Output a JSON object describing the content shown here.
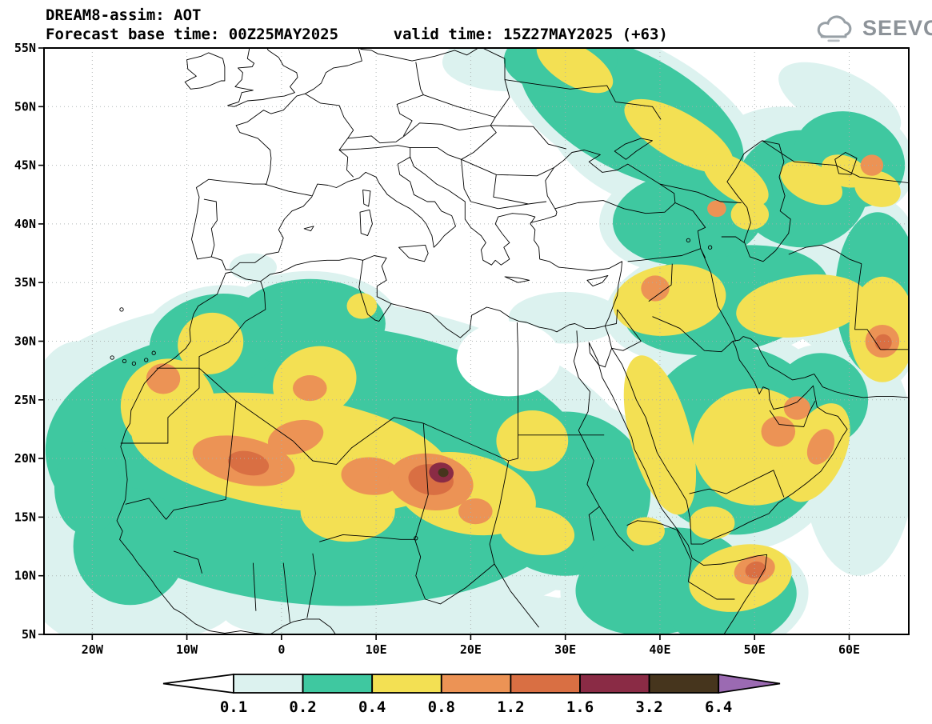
{
  "header": {
    "title": "DREAM8-assim: AOT",
    "subtitle": "Forecast base time: 00Z25MAY2025      valid time: 15Z27MAY2025 (+63)"
  },
  "logo": {
    "text": "SEEVCCC",
    "icon": "cloud-icon",
    "color": "#8d9399"
  },
  "chart_data": {
    "type": "filled_contour_map",
    "title": "DREAM8-assim: AOT",
    "variable": "AOT (aerosol optical thickness)",
    "forecast_base_time": "00Z25MAY2025",
    "valid_time": "15Z27MAY2025",
    "forecast_hour": "+63",
    "map_extent": {
      "lon_min": -25.1,
      "lon_max": 66.3,
      "lat_min": 5,
      "lat_max": 55
    },
    "x_axis": {
      "tick_labels": [
        "20W",
        "10W",
        "0",
        "10E",
        "20E",
        "30E",
        "40E",
        "50E",
        "60E"
      ],
      "tick_lons": [
        -20,
        -10,
        0,
        10,
        20,
        30,
        40,
        50,
        60
      ]
    },
    "y_axis": {
      "tick_labels": [
        "55N",
        "50N",
        "45N",
        "40N",
        "35N",
        "30N",
        "25N",
        "20N",
        "15N",
        "10N",
        "5N"
      ],
      "tick_lats": [
        55,
        50,
        45,
        40,
        35,
        30,
        25,
        20,
        15,
        10,
        5
      ]
    },
    "grid": "dotted",
    "contour_levels": [
      0.1,
      0.2,
      0.4,
      0.8,
      1.2,
      1.6,
      3.2,
      6.4
    ],
    "palette": [
      "#ffffff",
      "#dcf2ef",
      "#3fc8a0",
      "#f3e053",
      "#ec9355",
      "#d96f43",
      "#8a2b45",
      "#46351d",
      "#9b6ab2"
    ],
    "palette_meaning": [
      "<0.1",
      "0.1-0.2",
      "0.2-0.4",
      "0.4-0.8",
      "0.8-1.2",
      "1.2-1.6",
      "1.6-3.2",
      "3.2-6.4",
      ">6.4"
    ],
    "aot_features": [
      {
        "name": "aot-0.1-0.2",
        "color": 1,
        "ellipses": [
          [
            -19,
            12,
            9,
            8,
            0
          ],
          [
            -21.5,
            23,
            5.5,
            7,
            0
          ],
          [
            -14,
            7.5,
            9,
            3,
            0
          ],
          [
            14,
            6.5,
            20,
            2.5,
            0
          ],
          [
            40,
            6.5,
            14,
            2.5,
            0
          ],
          [
            30,
            32,
            6,
            2.2,
            0
          ],
          [
            24,
            53.8,
            7,
            2.5,
            0
          ],
          [
            38,
            48,
            11,
            6,
            28
          ],
          [
            53,
            44,
            9,
            6,
            0
          ],
          [
            61,
            20,
            6,
            10,
            0
          ],
          [
            59,
            34,
            6,
            5,
            0
          ],
          [
            26,
            24,
            6,
            4,
            0
          ],
          [
            44.5,
            28.5,
            3.5,
            2.5,
            0
          ],
          [
            -3,
            36.3,
            2.5,
            1.2,
            0
          ],
          [
            59,
            50.5,
            7,
            2.5,
            25
          ]
        ]
      },
      {
        "name": "aot-0.2-0.4",
        "color": 2,
        "rim_color": 1,
        "rim_scale": 1.18,
        "ellipses": [
          [
            4,
            19.5,
            29,
            12,
            4
          ],
          [
            -7,
            30,
            7,
            4,
            -10
          ],
          [
            3,
            31.5,
            8,
            3.8,
            0
          ],
          [
            30,
            17,
            9,
            7,
            0
          ],
          [
            40,
            9.5,
            9,
            4.5,
            -10
          ],
          [
            48,
            21.5,
            10,
            8,
            0
          ],
          [
            47,
            33.5,
            11,
            4.5,
            -10
          ],
          [
            43,
            40.5,
            8,
            4,
            -5
          ],
          [
            37,
            49.5,
            13,
            5,
            28
          ],
          [
            29.5,
            54,
            6,
            2.8,
            0
          ],
          [
            55,
            43,
            7,
            5,
            0
          ],
          [
            63,
            34,
            4.5,
            7,
            0
          ],
          [
            -16,
            12.5,
            6,
            5,
            0
          ],
          [
            -20.5,
            17.5,
            3.5,
            4,
            0
          ],
          [
            47.5,
            8,
            7,
            4,
            -10
          ],
          [
            57,
            25,
            5,
            4,
            0
          ],
          [
            60,
            45.5,
            6,
            4,
            20
          ]
        ]
      },
      {
        "name": "aot-below-0.1",
        "color": 0,
        "ellipses": [
          [
            24,
            28.5,
            5.5,
            3.2,
            0
          ],
          [
            -9.5,
            23.5,
            2.5,
            2,
            0
          ]
        ]
      },
      {
        "name": "aot-0.4-0.8",
        "color": 3,
        "ellipses": [
          [
            1,
            20.5,
            17,
            4.8,
            8
          ],
          [
            -12,
            24.5,
            5,
            4,
            -25
          ],
          [
            -7.5,
            29.8,
            3.5,
            2.6,
            -20
          ],
          [
            3.5,
            26.5,
            4.5,
            3,
            -20
          ],
          [
            19.5,
            17,
            7.5,
            3.4,
            12
          ],
          [
            7,
            15.5,
            5,
            2.6,
            0
          ],
          [
            27,
            13.8,
            4,
            2,
            10
          ],
          [
            26.5,
            21.5,
            3.8,
            2.6,
            0
          ],
          [
            40,
            22,
            3.2,
            7,
            -15
          ],
          [
            50,
            21,
            6.5,
            5,
            0
          ],
          [
            56.5,
            20.5,
            3,
            4.5,
            25
          ],
          [
            48.5,
            9.8,
            5.5,
            2.8,
            -12
          ],
          [
            41,
            33.5,
            6,
            3,
            -8
          ],
          [
            55,
            33,
            7,
            2.6,
            -8
          ],
          [
            63.5,
            31,
            3.5,
            4.5,
            0
          ],
          [
            42,
            47.5,
            6.5,
            2,
            30
          ],
          [
            31,
            53.5,
            4.5,
            1.7,
            30
          ],
          [
            48,
            43.8,
            4,
            1.6,
            35
          ],
          [
            56,
            43.5,
            3.5,
            1.6,
            25
          ],
          [
            38.5,
            13.8,
            2,
            1.2,
            0
          ],
          [
            45.5,
            14.5,
            2.4,
            1.4,
            0
          ],
          [
            49.5,
            40.8,
            2,
            1.3,
            0
          ],
          [
            59.5,
            44.5,
            2.5,
            1.3,
            20
          ],
          [
            63,
            43,
            2.5,
            1.5,
            20
          ],
          [
            8.5,
            33,
            1.6,
            1.1,
            0
          ]
        ]
      },
      {
        "name": "aot-0.8-1.2",
        "color": 4,
        "ellipses": [
          [
            -4,
            19.8,
            5.5,
            2,
            12
          ],
          [
            1.5,
            21.8,
            3,
            1.4,
            -15
          ],
          [
            9.5,
            18.5,
            3.2,
            1.6,
            5
          ],
          [
            15.8,
            18,
            4.5,
            2.4,
            8
          ],
          [
            -12.5,
            26.8,
            1.8,
            1.3,
            0
          ],
          [
            3,
            26,
            1.8,
            1.1,
            0
          ],
          [
            20.5,
            15.5,
            1.8,
            1.1,
            0
          ],
          [
            39.5,
            34.5,
            1.5,
            1.1,
            0
          ],
          [
            52.5,
            22.3,
            1.8,
            1.3,
            0
          ],
          [
            54.5,
            24.3,
            1.4,
            1,
            0
          ],
          [
            57,
            21,
            1.3,
            1.6,
            25
          ],
          [
            50,
            10.5,
            2.2,
            1.2,
            -15
          ],
          [
            63.5,
            30,
            1.8,
            1.4,
            0
          ],
          [
            46,
            41.3,
            1,
            0.7,
            0
          ],
          [
            62.4,
            45,
            1.2,
            0.9,
            0
          ]
        ]
      },
      {
        "name": "aot-1.2-1.6",
        "color": 5,
        "ellipses": [
          [
            15.8,
            18.2,
            2.4,
            1.3,
            8
          ],
          [
            -3.5,
            19.6,
            2.2,
            1,
            12
          ],
          [
            50.1,
            10.5,
            1.1,
            0.7,
            -15
          ],
          [
            63.6,
            29.9,
            0.9,
            0.7,
            0
          ]
        ]
      },
      {
        "name": "aot-1.6-3.2",
        "color": 6,
        "ellipses": [
          [
            16.9,
            18.8,
            1.3,
            0.85,
            8
          ]
        ]
      },
      {
        "name": "aot-3.2-6.4",
        "color": 7,
        "ellipses": [
          [
            17.1,
            18.8,
            0.55,
            0.38,
            8
          ]
        ]
      }
    ]
  },
  "colorbar": {
    "labels": [
      "0.1",
      "0.2",
      "0.4",
      "0.8",
      "1.2",
      "1.6",
      "3.2",
      "6.4"
    ],
    "segment_colors": [
      "#dcf2ef",
      "#3fc8a0",
      "#f3e053",
      "#ec9355",
      "#d96f43",
      "#8a2b45",
      "#46351d"
    ],
    "left_arrow_color": "#ffffff",
    "right_arrow_color": "#9b6ab2"
  }
}
